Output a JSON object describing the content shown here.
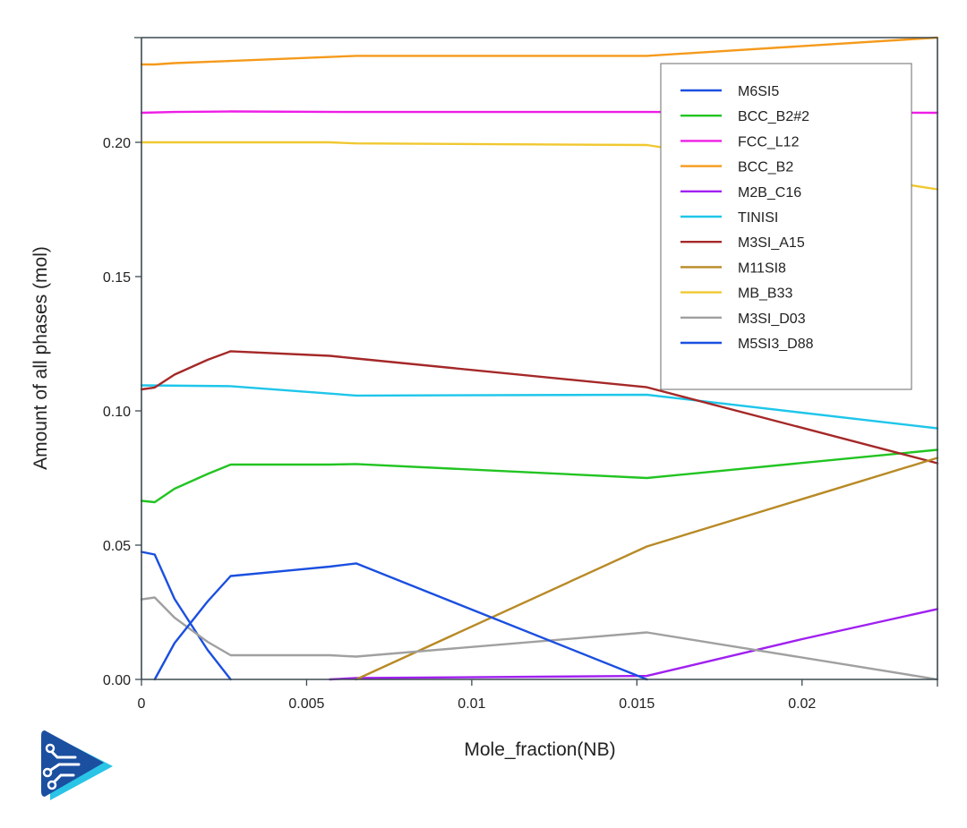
{
  "chart_data": {
    "type": "line",
    "title": "",
    "xlabel": "Mole_fraction(NB)",
    "ylabel": "Amount of all phases (mol)",
    "xlim": [
      0,
      0.0241
    ],
    "ylim": [
      0,
      0.239
    ],
    "x_ticks": [
      0,
      0.005,
      0.01,
      0.015,
      0.02
    ],
    "x_tick_labels": [
      "0",
      "0.005",
      "0.01",
      "0.015",
      "0.02"
    ],
    "y_ticks": [
      0,
      0.05,
      0.1,
      0.15,
      0.2
    ],
    "y_tick_labels": [
      "0.00",
      "0.05",
      "0.10",
      "0.15",
      "0.20"
    ],
    "grid": false,
    "legend_position": "top-right",
    "series": [
      {
        "name": "M6SI5",
        "color": "#1a4fe0",
        "x": [
          0,
          0.0004,
          0.001,
          0.002,
          0.0027
        ],
        "y": [
          0.0475,
          0.0465,
          0.03,
          0.011,
          0.0
        ]
      },
      {
        "name": "BCC_B2#2",
        "color": "#22c422",
        "x": [
          0,
          0.0004,
          0.001,
          0.002,
          0.0027,
          0.0057,
          0.0065,
          0.0153,
          0.0241
        ],
        "y": [
          0.0665,
          0.066,
          0.071,
          0.0765,
          0.08,
          0.08,
          0.0802,
          0.075,
          0.0855
        ]
      },
      {
        "name": "FCC_L12",
        "color": "#ee1ee6",
        "x": [
          0,
          0.001,
          0.0027,
          0.0065,
          0.0153,
          0.0241
        ],
        "y": [
          0.211,
          0.2113,
          0.2115,
          0.2113,
          0.2113,
          0.211
        ]
      },
      {
        "name": "BCC_B2",
        "color": "#f59a1c",
        "x": [
          0,
          0.0004,
          0.001,
          0.0027,
          0.0065,
          0.0153,
          0.0241
        ],
        "y": [
          0.229,
          0.229,
          0.2295,
          0.2303,
          0.2322,
          0.2322,
          0.239
        ]
      },
      {
        "name": "M2B_C16",
        "color": "#a020f0",
        "x": [
          0.0057,
          0.0065,
          0.0153,
          0.02,
          0.0241
        ],
        "y": [
          0.0,
          0.0005,
          0.0013,
          0.015,
          0.0262
        ]
      },
      {
        "name": "TINISI",
        "color": "#1ec6ea",
        "x": [
          0,
          0.0027,
          0.0065,
          0.0153,
          0.0241
        ],
        "y": [
          0.1095,
          0.1092,
          0.1057,
          0.106,
          0.0935
        ]
      },
      {
        "name": "M3SI_A15",
        "color": "#a52828",
        "x": [
          0,
          0.0004,
          0.001,
          0.002,
          0.0027,
          0.0057,
          0.0065,
          0.0153,
          0.0241
        ],
        "y": [
          0.108,
          0.1087,
          0.1135,
          0.119,
          0.1222,
          0.1205,
          0.1195,
          0.1088,
          0.0805
        ]
      },
      {
        "name": "M11SI8",
        "color": "#b88a26",
        "x": [
          0.0065,
          0.0153,
          0.0241
        ],
        "y": [
          0.0,
          0.0495,
          0.0825
        ]
      },
      {
        "name": "MB_B33",
        "color": "#f0c830",
        "x": [
          0,
          0.0027,
          0.0057,
          0.0065,
          0.0153,
          0.0241
        ],
        "y": [
          0.2,
          0.2,
          0.2,
          0.1996,
          0.199,
          0.1825
        ]
      },
      {
        "name": "M3SI_D03",
        "color": "#a0a0a0",
        "x": [
          0,
          0.0004,
          0.001,
          0.002,
          0.0027,
          0.0057,
          0.0065,
          0.0153,
          0.0241
        ],
        "y": [
          0.0298,
          0.0305,
          0.023,
          0.014,
          0.009,
          0.009,
          0.0085,
          0.0175,
          0.0
        ]
      },
      {
        "name": "M5SI3_D88",
        "color": "#1a4fe0",
        "x": [
          0.0004,
          0.001,
          0.002,
          0.0027,
          0.0057,
          0.0065,
          0.0153
        ],
        "y": [
          0.0,
          0.0135,
          0.029,
          0.0385,
          0.042,
          0.0432,
          0.0
        ]
      }
    ]
  },
  "logo": {
    "icon": "circuit-play-logo-icon",
    "color": "#1b4fa0",
    "accent": "#29c4e6"
  }
}
